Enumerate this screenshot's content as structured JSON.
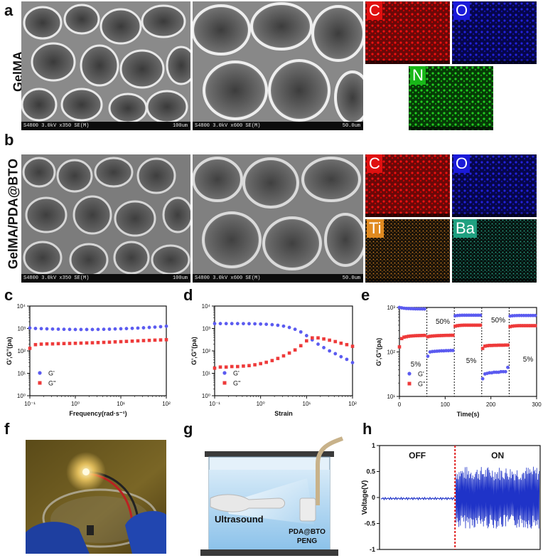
{
  "panels": {
    "a": {
      "letter": "a",
      "row_label": "GelMA",
      "sem_left": {
        "caption": "S4800 3.0kV x350 SE(M)",
        "scale": "100um"
      },
      "sem_right": {
        "caption": "S4800 3.0kV x600 SE(M)",
        "scale": "50.0um"
      },
      "eds": [
        "C",
        "O",
        "N"
      ]
    },
    "b": {
      "letter": "b",
      "row_label": "GelMA/PDA@BTO",
      "sem_left": {
        "caption": "S4800 3.0kV x350 SE(M)",
        "scale": "100um"
      },
      "sem_right": {
        "caption": "S4800 3.0kV x600 SE(M)",
        "scale": "50.0um"
      },
      "eds": [
        "C",
        "O",
        "Ti",
        "Ba"
      ]
    },
    "c": {
      "letter": "c"
    },
    "d": {
      "letter": "d"
    },
    "e": {
      "letter": "e"
    },
    "f": {
      "letter": "f"
    },
    "g": {
      "letter": "g"
    },
    "h": {
      "letter": "h"
    }
  },
  "colors": {
    "g_prime": "#5b5bf0",
    "g_double": "#ee3a3a",
    "voltage": "#1f33c8",
    "divider": "#e02020"
  },
  "chart_data": [
    {
      "id": "c",
      "type": "scatter",
      "xlabel": "Frequency(rad·s⁻¹)",
      "ylabel": "G',G''(pa)",
      "xscale": "log",
      "yscale": "log",
      "xlim": [
        0.1,
        100
      ],
      "ylim": [
        1,
        10000
      ],
      "xticks": [
        "10⁻¹",
        "10⁰",
        "10¹",
        "10²"
      ],
      "yticks": [
        "10⁰",
        "10¹",
        "10²",
        "10³",
        "10⁴"
      ],
      "legend": [
        "G'",
        "G''"
      ],
      "legend_position": "bottom-left",
      "series": [
        {
          "name": "G'",
          "x": [
            0.1,
            0.133,
            0.178,
            0.237,
            0.316,
            0.422,
            0.562,
            0.75,
            1,
            1.33,
            1.78,
            2.37,
            3.16,
            4.22,
            5.62,
            7.5,
            10,
            13.3,
            17.8,
            23.7,
            31.6,
            42.2,
            56.2,
            75,
            100
          ],
          "y": [
            1050,
            1000,
            980,
            960,
            940,
            930,
            920,
            910,
            900,
            900,
            900,
            900,
            910,
            920,
            930,
            950,
            970,
            990,
            1010,
            1040,
            1070,
            1110,
            1150,
            1200,
            1260
          ]
        },
        {
          "name": "G''",
          "x": [
            0.1,
            0.133,
            0.178,
            0.237,
            0.316,
            0.422,
            0.562,
            0.75,
            1,
            1.33,
            1.78,
            2.37,
            3.16,
            4.22,
            5.62,
            7.5,
            10,
            13.3,
            17.8,
            23.7,
            31.6,
            42.2,
            56.2,
            75,
            100
          ],
          "y": [
            130,
            190,
            200,
            205,
            205,
            210,
            212,
            215,
            218,
            222,
            226,
            230,
            235,
            240,
            245,
            252,
            258,
            265,
            272,
            280,
            288,
            295,
            302,
            308,
            315
          ]
        }
      ]
    },
    {
      "id": "d",
      "type": "scatter",
      "xlabel": "Strain",
      "ylabel": "G',G''(pa)",
      "xscale": "log",
      "yscale": "log",
      "xlim": [
        0.1,
        100
      ],
      "ylim": [
        1,
        10000
      ],
      "xticks": [
        "10⁻¹",
        "10⁰",
        "10¹",
        "10²"
      ],
      "yticks": [
        "10⁰",
        "10¹",
        "10²",
        "10³",
        "10⁴"
      ],
      "legend": [
        "G'",
        "G''"
      ],
      "legend_position": "bottom-left",
      "series": [
        {
          "name": "G'",
          "x": [
            0.1,
            0.133,
            0.178,
            0.237,
            0.316,
            0.422,
            0.562,
            0.75,
            1,
            1.33,
            1.78,
            2.37,
            3.16,
            4.22,
            5.62,
            7.5,
            10,
            13.3,
            17.8,
            23.7,
            31.6,
            42.2,
            56.2,
            75,
            100
          ],
          "y": [
            1650,
            1650,
            1650,
            1650,
            1650,
            1640,
            1630,
            1610,
            1580,
            1540,
            1480,
            1390,
            1270,
            1110,
            920,
            700,
            480,
            310,
            200,
            140,
            100,
            75,
            55,
            42,
            30
          ]
        },
        {
          "name": "G''",
          "x": [
            0.1,
            0.133,
            0.178,
            0.237,
            0.316,
            0.422,
            0.562,
            0.75,
            1,
            1.33,
            1.78,
            2.37,
            3.16,
            4.22,
            5.62,
            7.5,
            10,
            13.3,
            17.8,
            23.7,
            31.6,
            42.2,
            56.2,
            75,
            100
          ],
          "y": [
            17,
            19,
            19,
            20,
            20,
            21,
            22,
            24,
            27,
            31,
            37,
            46,
            60,
            80,
            110,
            170,
            280,
            380,
            380,
            340,
            300,
            260,
            220,
            190,
            160
          ]
        }
      ]
    },
    {
      "id": "e",
      "type": "scatter",
      "xlabel": "Time(s)",
      "ylabel": "G',G''(pa)",
      "xscale": "linear",
      "yscale": "log",
      "xlim": [
        0,
        300
      ],
      "ylim": [
        10,
        1000
      ],
      "xticks": [
        "0",
        "100",
        "200",
        "300"
      ],
      "yticks": [
        "10¹",
        "10²",
        "10³"
      ],
      "legend": [
        "G'",
        "G''"
      ],
      "legend_position": "bottom-left",
      "segment_boundaries": [
        60,
        120,
        180,
        240
      ],
      "annotations": [
        "5%",
        "50%",
        "5%",
        "50%",
        "5%"
      ],
      "series": [
        {
          "name": "G'",
          "x": [
            0,
            5,
            10,
            15,
            20,
            25,
            30,
            35,
            40,
            45,
            50,
            55,
            62,
            67,
            72,
            77,
            82,
            87,
            92,
            97,
            102,
            107,
            112,
            117,
            122,
            127,
            132,
            137,
            142,
            147,
            152,
            157,
            162,
            167,
            172,
            177,
            182,
            187,
            192,
            197,
            202,
            207,
            212,
            217,
            222,
            227,
            232,
            237,
            242,
            247,
            252,
            257,
            262,
            267,
            272,
            277,
            282,
            287,
            292,
            297
          ],
          "y": [
            1000,
            980,
            960,
            950,
            945,
            940,
            935,
            930,
            930,
            928,
            926,
            925,
            80,
            100,
            102,
            103,
            104,
            105,
            106,
            106,
            107,
            107,
            108,
            108,
            650,
            660,
            665,
            668,
            670,
            670,
            670,
            670,
            670,
            670,
            670,
            670,
            25,
            32,
            33,
            34,
            34,
            35,
            35,
            35,
            36,
            36,
            36,
            45,
            640,
            650,
            655,
            658,
            660,
            660,
            660,
            660,
            660,
            660,
            660,
            660
          ]
        },
        {
          "name": "G''",
          "x": [
            0,
            5,
            10,
            15,
            20,
            25,
            30,
            35,
            40,
            45,
            50,
            55,
            62,
            67,
            72,
            77,
            82,
            87,
            92,
            97,
            102,
            107,
            112,
            117,
            122,
            127,
            132,
            137,
            142,
            147,
            152,
            157,
            162,
            167,
            172,
            177,
            182,
            187,
            192,
            197,
            202,
            207,
            212,
            217,
            222,
            227,
            232,
            237,
            242,
            247,
            252,
            257,
            262,
            267,
            272,
            277,
            282,
            287,
            292,
            297
          ],
          "y": [
            130,
            200,
            215,
            220,
            225,
            228,
            230,
            232,
            233,
            234,
            235,
            236,
            220,
            225,
            228,
            230,
            232,
            233,
            234,
            235,
            236,
            236,
            237,
            237,
            380,
            390,
            395,
            398,
            400,
            400,
            400,
            400,
            400,
            400,
            400,
            400,
            120,
            135,
            138,
            140,
            140,
            141,
            141,
            142,
            142,
            142,
            143,
            143,
            370,
            380,
            385,
            388,
            390,
            390,
            390,
            390,
            390,
            390,
            390,
            390
          ]
        }
      ]
    },
    {
      "id": "h",
      "type": "line",
      "xlabel": "",
      "ylabel": "Voltage(V)",
      "ylim": [
        -1,
        1
      ],
      "yticks": [
        "-1",
        "-0.5",
        "0",
        "0.5",
        "1"
      ],
      "annotations": [
        "OFF",
        "ON"
      ],
      "divider_position": 0.47,
      "off_amplitude": 0.02,
      "on_amplitude": 0.6
    }
  ],
  "figure_g": {
    "label_ultrasound": "Ultrasound",
    "label_device_1": "PDA@BTO",
    "label_device_2": "PENG"
  }
}
